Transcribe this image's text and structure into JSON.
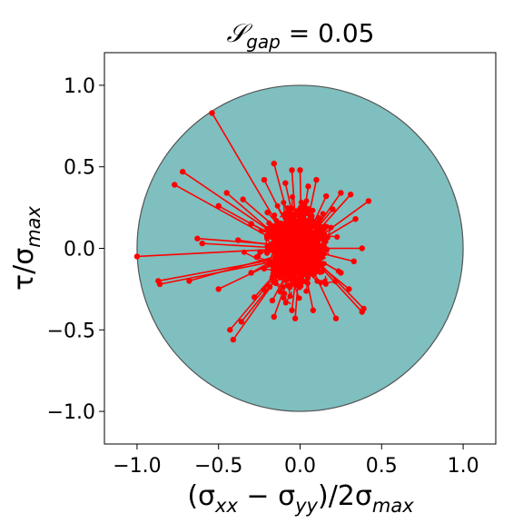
{
  "chart_data": {
    "type": "scatter",
    "title": {
      "prefix": "𝒮",
      "subscript": "gap",
      "suffix": " = 0.05"
    },
    "xlabel": {
      "parts": [
        {
          "t": "(σ",
          "sub": false
        },
        {
          "t": "xx",
          "sub": true
        },
        {
          "t": " − σ",
          "sub": false
        },
        {
          "t": "yy",
          "sub": true
        },
        {
          "t": ")/2σ",
          "sub": false
        },
        {
          "t": "max",
          "sub": true
        }
      ]
    },
    "ylabel": {
      "parts": [
        {
          "t": "τ/σ",
          "sub": false
        },
        {
          "t": "max",
          "sub": true
        }
      ]
    },
    "xlim": [
      -1.2,
      1.2
    ],
    "ylim": [
      -1.2,
      1.2
    ],
    "xticks": [
      -1.0,
      -0.5,
      0.0,
      0.5,
      1.0
    ],
    "yticks": [
      -1.0,
      -0.5,
      0.0,
      0.5,
      1.0
    ],
    "xtick_labels": [
      "−1.0",
      "−0.5",
      "0.0",
      "0.5",
      "1.0"
    ],
    "ytick_labels": [
      "−1.0",
      "−0.5",
      "0.0",
      "0.5",
      "1.0"
    ],
    "grid": false,
    "circle": {
      "center": [
        0,
        0
      ],
      "radius": 1.0,
      "fill": "#7fbfbf",
      "stroke": "#555555"
    },
    "series_color": "#ff0000",
    "segments": [
      {
        "from": [
          -0.04,
          0.0
        ],
        "to": [
          -1.0,
          -0.05
        ]
      },
      {
        "from": [
          -0.08,
          0.05
        ],
        "to": [
          -0.54,
          0.83
        ]
      },
      {
        "from": [
          -0.1,
          0.05
        ],
        "to": [
          -0.72,
          0.47
        ]
      },
      {
        "from": [
          -0.1,
          0.02
        ],
        "to": [
          -0.77,
          0.39
        ]
      },
      {
        "from": [
          -0.06,
          -0.05
        ],
        "to": [
          -0.87,
          -0.2
        ]
      },
      {
        "from": [
          -0.06,
          -0.06
        ],
        "to": [
          -0.86,
          -0.22
        ]
      },
      {
        "from": [
          -0.08,
          -0.03
        ],
        "to": [
          -0.68,
          -0.2
        ]
      },
      {
        "from": [
          -0.1,
          0.02
        ],
        "to": [
          -0.63,
          0.06
        ]
      },
      {
        "from": [
          -0.09,
          0.0
        ],
        "to": [
          -0.6,
          0.03
        ]
      },
      {
        "from": [
          -0.08,
          0.03
        ],
        "to": [
          -0.5,
          0.26
        ]
      },
      {
        "from": [
          -0.08,
          0.02
        ],
        "to": [
          -0.45,
          0.34
        ]
      },
      {
        "from": [
          -0.06,
          0.05
        ],
        "to": [
          -0.35,
          0.3
        ]
      },
      {
        "from": [
          -0.04,
          0.06
        ],
        "to": [
          -0.22,
          0.42
        ]
      },
      {
        "from": [
          -0.05,
          -0.05
        ],
        "to": [
          -0.43,
          -0.5
        ]
      },
      {
        "from": [
          -0.05,
          -0.05
        ],
        "to": [
          -0.41,
          -0.56
        ]
      },
      {
        "from": [
          -0.03,
          -0.04
        ],
        "to": [
          -0.36,
          -0.45
        ]
      },
      {
        "from": [
          -0.02,
          -0.02
        ],
        "to": [
          -0.5,
          -0.25
        ]
      },
      {
        "from": [
          -0.04,
          -0.03
        ],
        "to": [
          -0.28,
          -0.3
        ]
      },
      {
        "from": [
          -0.02,
          -0.03
        ],
        "to": [
          -0.16,
          -0.42
        ]
      },
      {
        "from": [
          0.0,
          0.0
        ],
        "to": [
          -0.17,
          -0.32
        ]
      },
      {
        "from": [
          -0.03,
          0.03
        ],
        "to": [
          -0.16,
          0.52
        ]
      },
      {
        "from": [
          -0.02,
          0.04
        ],
        "to": [
          -0.05,
          0.48
        ]
      },
      {
        "from": [
          -0.01,
          0.04
        ],
        "to": [
          -0.09,
          0.4
        ]
      },
      {
        "from": [
          0.0,
          0.04
        ],
        "to": [
          0.05,
          0.38
        ]
      },
      {
        "from": [
          0.01,
          0.05
        ],
        "to": [
          0.0,
          0.48
        ]
      },
      {
        "from": [
          0.02,
          0.04
        ],
        "to": [
          0.1,
          0.42
        ]
      },
      {
        "from": [
          0.03,
          0.04
        ],
        "to": [
          0.16,
          0.32
        ]
      },
      {
        "from": [
          0.03,
          0.03
        ],
        "to": [
          0.25,
          0.34
        ]
      },
      {
        "from": [
          0.04,
          0.03
        ],
        "to": [
          0.31,
          0.33
        ]
      },
      {
        "from": [
          0.05,
          0.02
        ],
        "to": [
          0.42,
          0.29
        ]
      },
      {
        "from": [
          0.04,
          0.0
        ],
        "to": [
          0.34,
          0.18
        ]
      },
      {
        "from": [
          0.04,
          0.0
        ],
        "to": [
          0.38,
          0.0
        ]
      },
      {
        "from": [
          0.05,
          -0.01
        ],
        "to": [
          0.33,
          -0.08
        ]
      },
      {
        "from": [
          0.05,
          -0.02
        ],
        "to": [
          0.39,
          -0.37
        ]
      },
      {
        "from": [
          0.04,
          -0.02
        ],
        "to": [
          0.38,
          -0.39
        ]
      },
      {
        "from": [
          0.03,
          -0.03
        ],
        "to": [
          0.22,
          -0.43
        ]
      },
      {
        "from": [
          0.01,
          -0.04
        ],
        "to": [
          0.08,
          -0.38
        ]
      },
      {
        "from": [
          0.0,
          -0.04
        ],
        "to": [
          -0.03,
          -0.43
        ]
      },
      {
        "from": [
          -0.01,
          -0.04
        ],
        "to": [
          -0.05,
          -0.38
        ]
      },
      {
        "from": [
          0.03,
          -0.03
        ],
        "to": [
          0.3,
          -0.25
        ]
      },
      {
        "from": [
          0.03,
          -0.02
        ],
        "to": [
          0.25,
          -0.15
        ]
      },
      {
        "from": [
          -0.05,
          -0.01
        ],
        "to": [
          -0.3,
          -0.15
        ]
      },
      {
        "from": [
          -0.04,
          0.02
        ],
        "to": [
          -0.3,
          0.15
        ]
      },
      {
        "from": [
          -0.02,
          0.02
        ],
        "to": [
          -0.2,
          0.22
        ]
      },
      {
        "from": [
          0.02,
          0.02
        ],
        "to": [
          0.2,
          0.24
        ]
      },
      {
        "from": [
          -0.02,
          0.0
        ],
        "to": [
          -0.38,
          0.05
        ]
      }
    ],
    "cluster_point_count": 900,
    "cluster_spread": [
      0.065,
      0.085
    ]
  }
}
